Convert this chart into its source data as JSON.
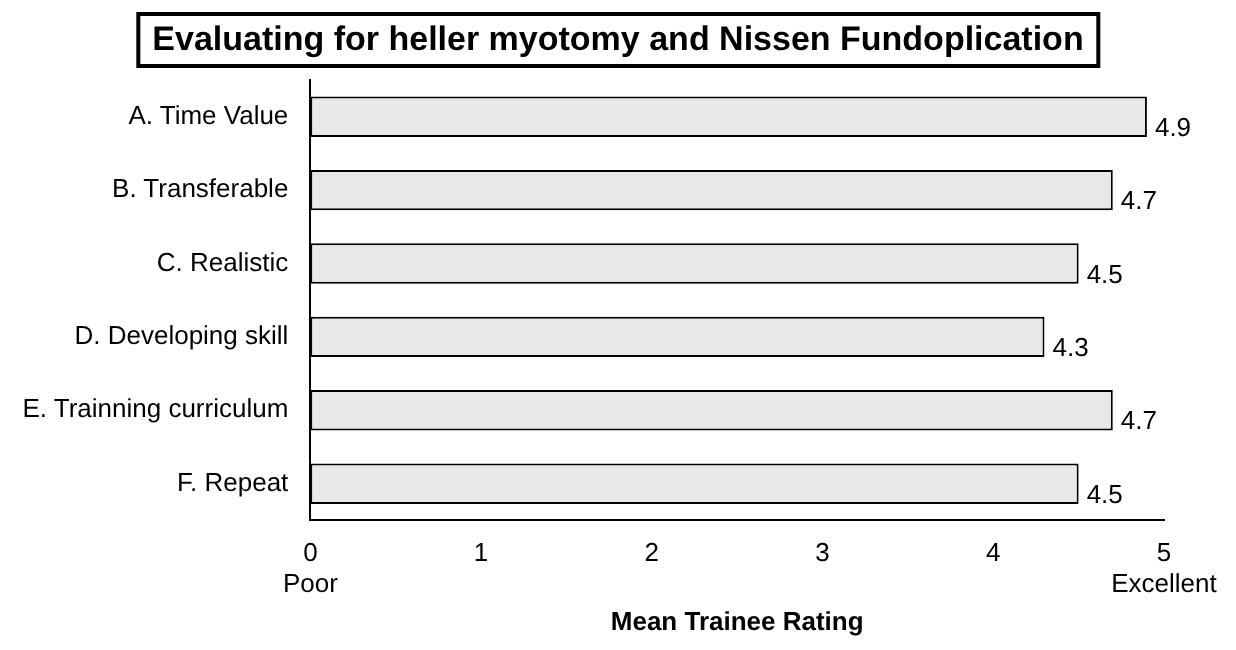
{
  "chart_data": {
    "type": "bar",
    "orientation": "horizontal",
    "title": "Evaluating for heller myotomy and Nissen Fundoplication",
    "xlabel": "Mean Trainee Rating",
    "categories": [
      "A. Time Value",
      "B. Transferable",
      "C. Realistic",
      "D. Developing skill",
      "E. Trainning curriculum",
      "F. Repeat"
    ],
    "values": [
      4.9,
      4.7,
      4.5,
      4.3,
      4.7,
      4.5
    ],
    "color": "#e8e8e8",
    "xlim": [
      0,
      5
    ],
    "xticks": [
      {
        "value": 0,
        "label": "0\nPoor"
      },
      1,
      2,
      3,
      4,
      {
        "value": 5,
        "label": "5\nExcellent"
      }
    ],
    "data_labels": true,
    "grid": false,
    "legend": false
  }
}
